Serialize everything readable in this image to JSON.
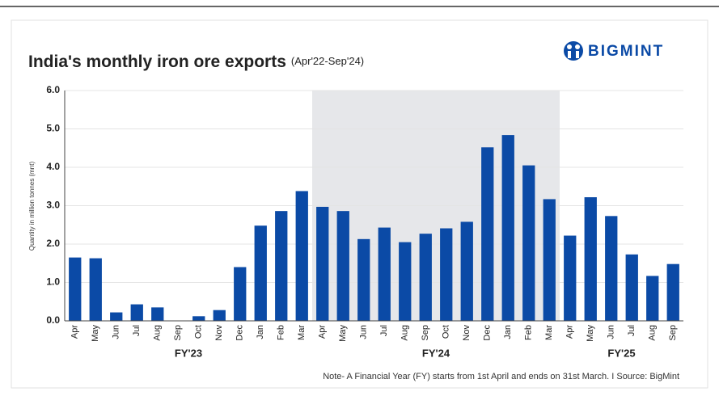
{
  "chart_data": {
    "type": "bar",
    "title": "India's monthly iron ore exports",
    "subtitle": "(Apr'22-Sep'24)",
    "brand": "BIGMINT",
    "y_label": "Quantity in million tonnes (mnt)",
    "note": "Note- A Financial Year (FY) starts from 1st April and ends on 31st March.  I  Source: BigMint",
    "color": "#0b4aa6",
    "grid": true,
    "ylim": [
      0,
      6
    ],
    "yticks": [
      {
        "value": 0,
        "label": "0.0"
      },
      {
        "value": 1,
        "label": "1.0"
      },
      {
        "value": 2,
        "label": "2.0"
      },
      {
        "value": 3,
        "label": "3.0"
      },
      {
        "value": 4,
        "label": "4.0"
      },
      {
        "value": 5,
        "label": "5.0"
      },
      {
        "value": 6,
        "label": "6.0"
      }
    ],
    "groups": [
      {
        "label": "FY'23",
        "shaded": false,
        "categories": [
          "Apr",
          "May",
          "Jun",
          "Jul",
          "Aug",
          "Sep",
          "Oct",
          "Nov",
          "Dec",
          "Jan",
          "Feb",
          "Mar"
        ],
        "values": [
          1.65,
          1.63,
          0.22,
          0.43,
          0.35,
          0,
          0.12,
          0.28,
          1.4,
          2.48,
          2.86,
          3.38
        ]
      },
      {
        "label": "FY'24",
        "shaded": true,
        "categories": [
          "Apr",
          "May",
          "Jun",
          "Jul",
          "Aug",
          "Sep",
          "Oct",
          "Nov",
          "Dec",
          "Jan",
          "Feb",
          "Mar"
        ],
        "values": [
          2.97,
          2.86,
          2.13,
          2.43,
          2.05,
          2.27,
          2.41,
          2.58,
          4.52,
          4.84,
          4.05,
          3.17
        ]
      },
      {
        "label": "FY'25",
        "shaded": false,
        "categories": [
          "Apr",
          "May",
          "Jun",
          "Jul",
          "Aug",
          "Sep"
        ],
        "values": [
          2.22,
          3.22,
          2.73,
          1.73,
          1.17,
          1.48
        ]
      }
    ]
  }
}
